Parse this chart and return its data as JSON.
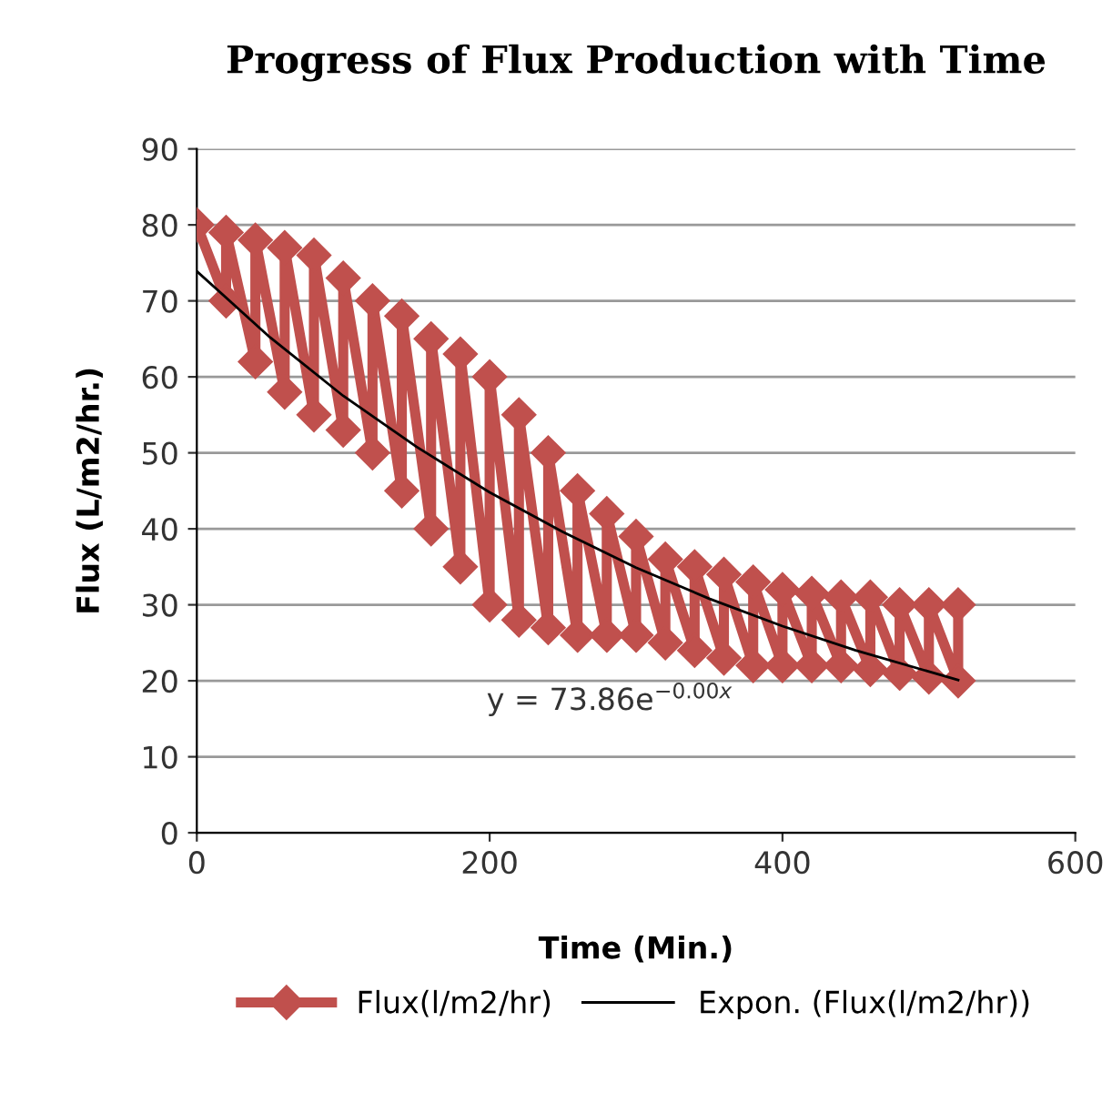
{
  "chart_data": {
    "type": "line",
    "title": "Progress of Flux Production with Time",
    "xlabel": "Time (Min.)",
    "ylabel": "Flux (L/m2/hr.)",
    "series": [
      {
        "name": "Flux(l/m2/hr)",
        "color": "#c0504d",
        "marker": "diamond",
        "x": [
          0,
          20,
          20,
          40,
          40,
          60,
          60,
          80,
          80,
          100,
          100,
          120,
          120,
          140,
          140,
          160,
          160,
          180,
          180,
          200,
          200,
          220,
          220,
          240,
          240,
          260,
          260,
          280,
          280,
          300,
          300,
          320,
          320,
          340,
          340,
          360,
          360,
          380,
          380,
          400,
          400,
          420,
          420,
          440,
          440,
          460,
          460,
          480,
          480,
          500,
          500,
          520,
          520
        ],
        "values": [
          80,
          70,
          79,
          62,
          78,
          58,
          77,
          55,
          76,
          53,
          73,
          50,
          70,
          45,
          68,
          40,
          65,
          35,
          63,
          30,
          60,
          28,
          55,
          27,
          50,
          26,
          45,
          26,
          42,
          26,
          39,
          25,
          36,
          24,
          35,
          23,
          34,
          22,
          33,
          22,
          32,
          22,
          31.5,
          22,
          31,
          21.5,
          31,
          21,
          30,
          20.5,
          30,
          20,
          30
        ]
      },
      {
        "name": "Expon. (Flux(l/m2/hr))",
        "color": "#000000",
        "marker": "none",
        "x": [
          0,
          50,
          100,
          150,
          200,
          250,
          300,
          350,
          400,
          450,
          520
        ],
        "values": [
          73.9,
          65.2,
          57.5,
          50.8,
          44.8,
          39.6,
          34.9,
          30.8,
          27.2,
          24.0,
          20.1
        ]
      }
    ],
    "annotations": [
      "y = 73.86e$^{−0.00x}$"
    ],
    "xlim": [
      0,
      600
    ],
    "xticks": [
      0,
      200,
      400,
      600
    ],
    "ylim": [
      0,
      90
    ],
    "yticks": [
      0,
      10,
      20,
      30,
      40,
      50,
      60,
      70,
      80,
      90
    ],
    "grid": "y",
    "legend": "bottom"
  }
}
